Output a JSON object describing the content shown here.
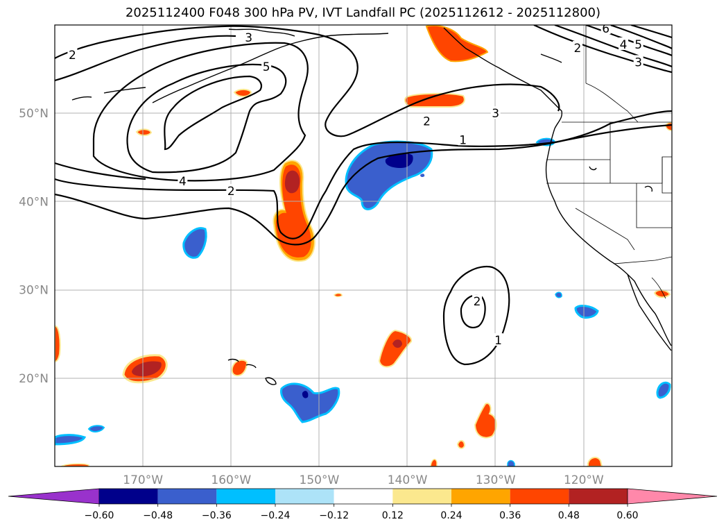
{
  "title": "2025112400 F048 300 hPa PV, IVT Landfall PC (2025112612 - 2025112800)",
  "chart_data": {
    "type": "map-contour",
    "projection": "PlateCarree",
    "lon_range": [
      -180,
      -110
    ],
    "lat_range": [
      10,
      60
    ],
    "lon_ticks": [
      {
        "value": -170,
        "label": "170°W"
      },
      {
        "value": -160,
        "label": "160°W"
      },
      {
        "value": -150,
        "label": "150°W"
      },
      {
        "value": -140,
        "label": "140°W"
      },
      {
        "value": -130,
        "label": "130°W"
      },
      {
        "value": -120,
        "label": "120°W"
      }
    ],
    "lat_ticks": [
      {
        "value": 50,
        "label": "50°N"
      },
      {
        "value": 40,
        "label": "40°N"
      },
      {
        "value": 30,
        "label": "30°N"
      },
      {
        "value": 20,
        "label": "20°N"
      }
    ],
    "contour_variable": "300 hPa PV",
    "contour_labels": [
      {
        "text": "2",
        "lon": -178,
        "lat": 56.6
      },
      {
        "text": "3",
        "lon": -158,
        "lat": 58.6
      },
      {
        "text": "5",
        "lon": -156,
        "lat": 55.3
      },
      {
        "text": "4",
        "lon": -165.5,
        "lat": 42.3
      },
      {
        "text": "2",
        "lon": -160,
        "lat": 41.2
      },
      {
        "text": "2",
        "lon": -137.8,
        "lat": 49.1
      },
      {
        "text": "1",
        "lon": -133.7,
        "lat": 47.0
      },
      {
        "text": "3",
        "lon": -130,
        "lat": 50.0
      },
      {
        "text": "6",
        "lon": -117.5,
        "lat": 59.6
      },
      {
        "text": "4",
        "lon": -115.5,
        "lat": 57.8
      },
      {
        "text": "5",
        "lon": -113.8,
        "lat": 57.8
      },
      {
        "text": "2",
        "lon": -120.7,
        "lat": 57.4
      },
      {
        "text": "3",
        "lon": -113.8,
        "lat": 55.8
      },
      {
        "text": "2",
        "lon": -132.1,
        "lat": 28.7
      },
      {
        "text": "1",
        "lon": -129.7,
        "lat": 24.3
      }
    ],
    "shaded_variable": "IVT Landfall PC",
    "colorbar": {
      "levels": [
        -0.6,
        -0.48,
        -0.36,
        -0.24,
        -0.12,
        0.12,
        0.24,
        0.36,
        0.48,
        0.6
      ],
      "tick_labels": [
        "−0.60",
        "−0.48",
        "−0.36",
        "−0.24",
        "−0.12",
        "0.12",
        "0.24",
        "0.36",
        "0.48",
        "0.60"
      ],
      "colors": [
        "#9932cc",
        "#00008b",
        "#3a5fcd",
        "#00bfff",
        "#ade3f8",
        "#ffffff",
        "#fbe88e",
        "#ffa500",
        "#ff4500",
        "#b22222",
        "#ff88aa"
      ],
      "extend": "both"
    }
  }
}
